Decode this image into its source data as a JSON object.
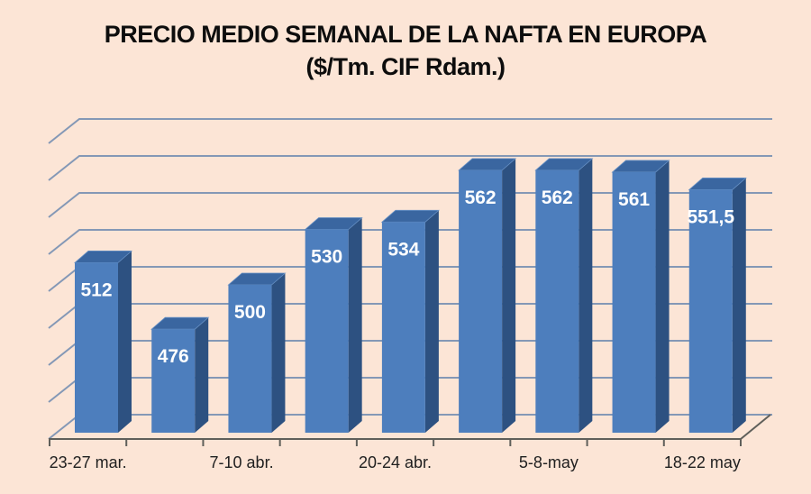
{
  "title": "PRECIO MEDIO SEMANAL DE LA NAFTA EN EUROPA",
  "subtitle": "($/Tm. CIF Rdam.)",
  "chart_data": {
    "type": "bar",
    "style": "3d-column",
    "title": "PRECIO MEDIO SEMANAL DE LA NAFTA EN EUROPA",
    "subtitle": "($/Tm. CIF Rdam.)",
    "categories": [
      "23-27 mar.",
      "",
      "7-10 abr.",
      "",
      "20-24 abr.",
      "",
      "5-8-may",
      "",
      "18-22 may"
    ],
    "x_tick_labels": [
      "23-27 mar.",
      "7-10 abr.",
      "20-24 abr.",
      "5-8-may",
      "18-22 may"
    ],
    "values": [
      512,
      476,
      500,
      530,
      534,
      562,
      562,
      561,
      551.5
    ],
    "data_labels": [
      "512",
      "476",
      "500",
      "530",
      "534",
      "562",
      "562",
      "561",
      "551,5"
    ],
    "ylabel": "",
    "xlabel": "",
    "ylim": [
      420,
      580
    ],
    "grid_step": 20,
    "grid": true,
    "legend": false,
    "value_axis_labels_visible": false,
    "colors": {
      "background": "#fce5d6",
      "bar_front": "#4d7ebd",
      "bar_top": "#3a66a0",
      "bar_side": "#2d5181",
      "bar_edge": "#6690c4",
      "gridline": "#8498b6",
      "axis": "#5f5f5a",
      "label_text": "#ffffff",
      "title_text": "#0d0d0d",
      "axis_text": "#1f1f1f"
    }
  }
}
